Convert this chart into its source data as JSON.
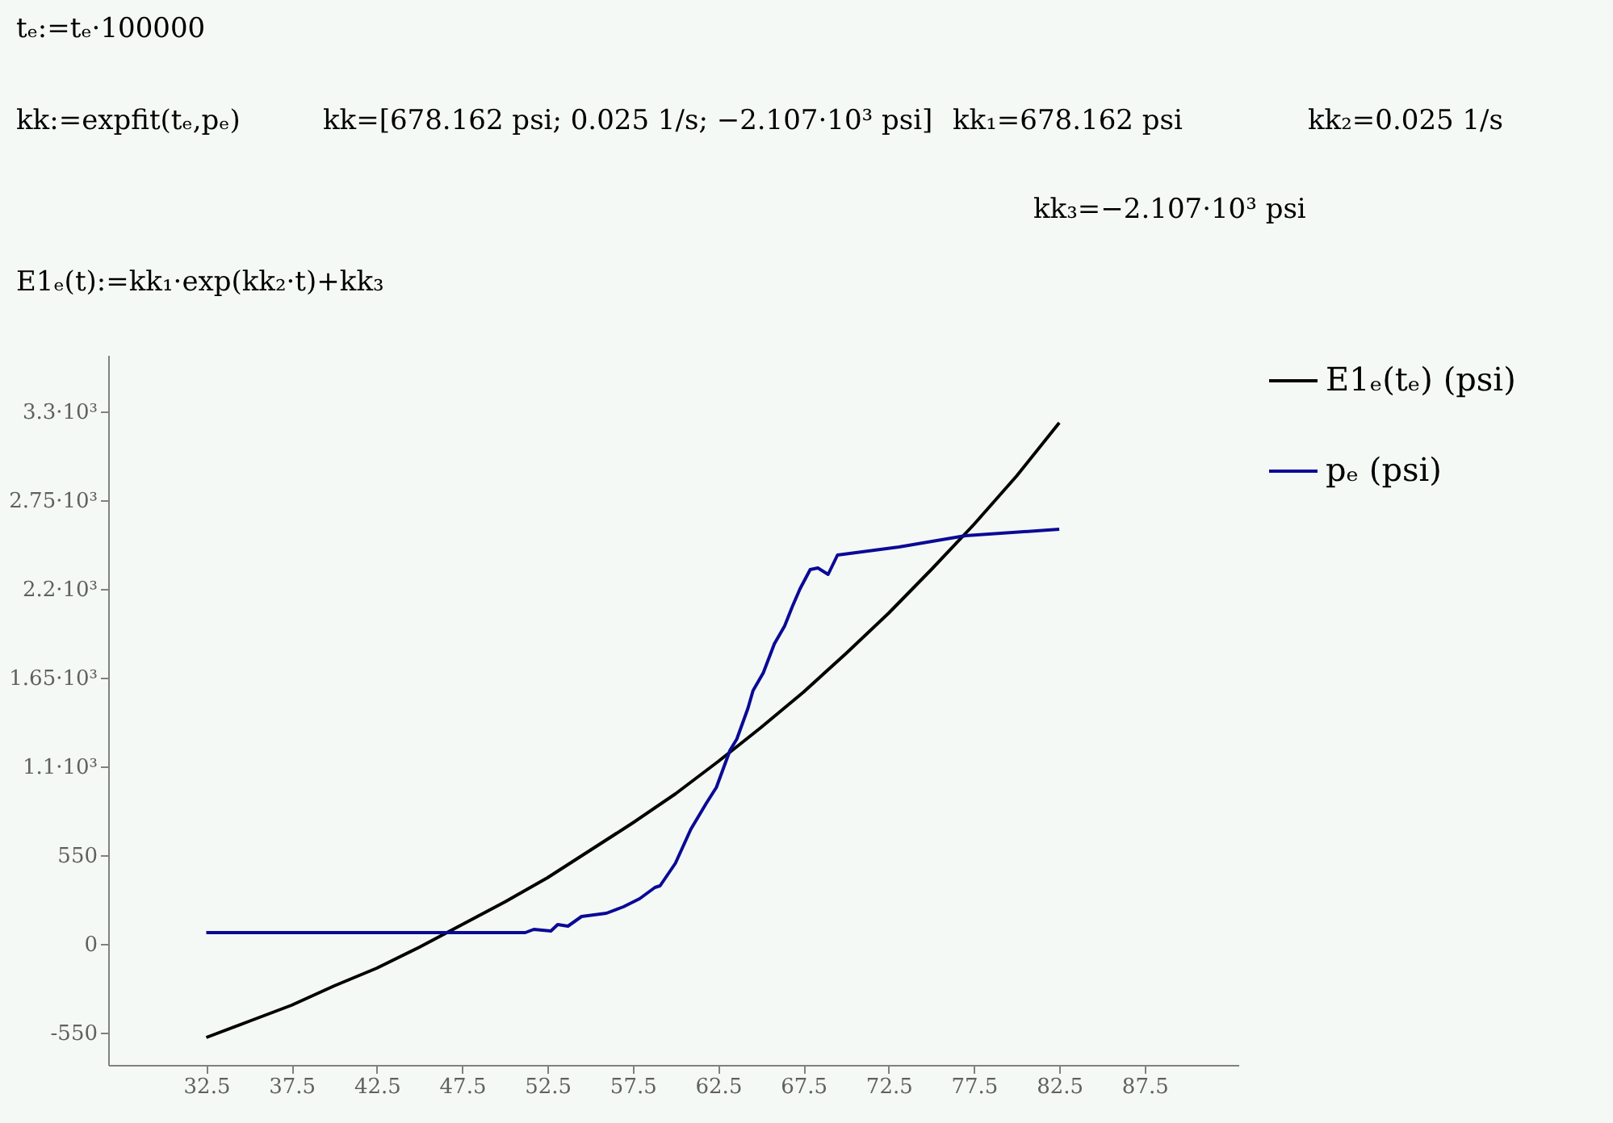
{
  "chart_data": {
    "type": "line",
    "annotations": [
      "tₑ:=tₑ·100000",
      "kk:=expfit(tₑ,pₑ)",
      "kk=[678.162 psi; 0.025 1/s; −2.107·10³ psi]",
      "kk₁=678.162 psi",
      "kk₂=0.025 1/s",
      "kk₃=−2.107·10³ psi",
      "E1ₑ(t):=kk₁·exp(kk₂·t)+kk₃"
    ],
    "series": [
      {
        "name": "E1ₑ(tₑ) (psi)",
        "color": "#000000",
        "x": [
          32.5,
          35,
          37.5,
          40,
          42.5,
          45,
          47.5,
          50,
          52.5,
          55,
          57.5,
          60,
          62.5,
          65,
          67.5,
          70,
          72.5,
          75,
          77.5,
          80,
          82.5
        ],
        "values": [
          -580,
          -480,
          -380,
          -260,
          -150,
          -20,
          120,
          260,
          410,
          580,
          750,
          930,
          1130,
          1340,
          1560,
          1800,
          2050,
          2320,
          2600,
          2900,
          3230
        ]
      },
      {
        "name": "pₑ (psi)",
        "color": "#0a0a96",
        "x": [
          32.5,
          40,
          45,
          51.2,
          51.7,
          52.7,
          53.1,
          53.7,
          54.5,
          55.95,
          56.95,
          57.9,
          58.8,
          59.1,
          60.0,
          60.9,
          61.8,
          62.4,
          63.2,
          63.6,
          64.25,
          64.55,
          65.15,
          65.8,
          66.4,
          66.85,
          67.3,
          67.9,
          68.35,
          68.95,
          69.5,
          73.1,
          77.0,
          82.5
        ],
        "values": [
          70,
          70,
          70,
          70,
          90,
          80,
          120,
          110,
          170,
          190,
          230,
          280,
          350,
          360,
          500,
          710,
          870,
          970,
          1200,
          1270,
          1460,
          1570,
          1680,
          1860,
          1970,
          2090,
          2200,
          2320,
          2330,
          2290,
          2410,
          2460,
          2530,
          2570
        ]
      }
    ],
    "xlim": [
      26.75,
      93
    ],
    "xticks": [
      32.5,
      37.5,
      42.5,
      47.5,
      52.5,
      57.5,
      62.5,
      67.5,
      72.5,
      77.5,
      82.5,
      87.5
    ],
    "ylim": [
      -750,
      3650
    ],
    "yticks": [
      -550,
      0,
      550,
      {
        "value": 1100,
        "label": "1.1·10³"
      },
      {
        "value": 1650,
        "label": "1.65·10³"
      },
      {
        "value": 2200,
        "label": "2.2·10³"
      },
      {
        "value": 2750,
        "label": "2.75·10³"
      },
      {
        "value": 3300,
        "label": "3.3·10³"
      }
    ],
    "grid": false,
    "legend": "right",
    "line_style": "solid",
    "marker": "none"
  }
}
